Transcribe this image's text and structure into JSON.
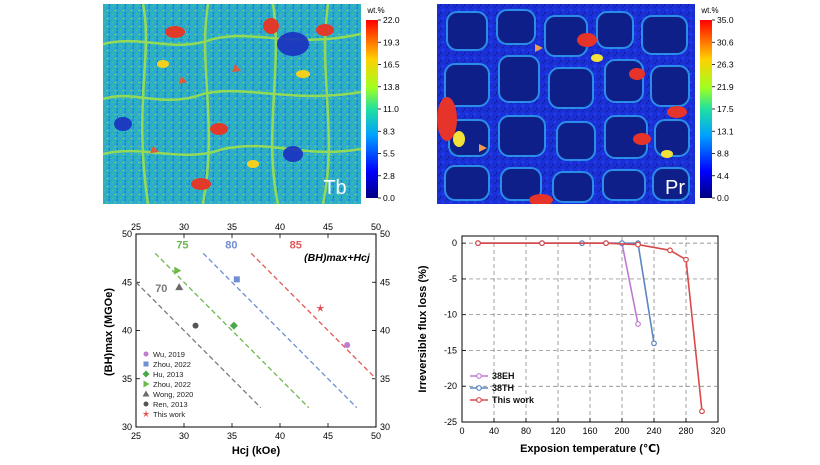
{
  "maps": [
    {
      "element": "Tb",
      "unit": "wt.%",
      "scale_ticks": [
        "22.0",
        "19.3",
        "16.5",
        "13.8",
        "11.0",
        "8.3",
        "5.5",
        "2.8",
        "0.0"
      ]
    },
    {
      "element": "Pr",
      "unit": "wt.%",
      "scale_ticks": [
        "35.0",
        "30.6",
        "26.3",
        "21.9",
        "17.5",
        "13.1",
        "8.8",
        "4.4",
        "0.0"
      ]
    }
  ],
  "scatter": {
    "xlabel": "Hcj (kOe)",
    "ylabel": "(BH)max (MGOe)",
    "annotation": "(BH)max+Hcj",
    "xticks": [
      "25",
      "30",
      "35",
      "40",
      "45",
      "50"
    ],
    "yticks": [
      "30",
      "35",
      "40",
      "45",
      "50"
    ],
    "lines": [
      {
        "label": "70",
        "color": "#7a7a7a"
      },
      {
        "label": "75",
        "color": "#6db84d"
      },
      {
        "label": "80",
        "color": "#6f8fd0"
      },
      {
        "label": "85",
        "color": "#e05a5a"
      }
    ],
    "legend": [
      {
        "label": "Wu, 2019",
        "color": "#c07ad0",
        "marker": "circle"
      },
      {
        "label": "Zhou, 2022",
        "color": "#6f8fd0",
        "marker": "square"
      },
      {
        "label": "Hu, 2013",
        "color": "#4aa84a",
        "marker": "diamond"
      },
      {
        "label": "Zhou, 2022",
        "color": "#6db84d",
        "marker": "triangle-right"
      },
      {
        "label": "Wong, 2020",
        "color": "#6a6a6a",
        "marker": "triangle"
      },
      {
        "label": "Ren, 2013",
        "color": "#555555",
        "marker": "circle"
      },
      {
        "label": "This work",
        "color": "#e04848",
        "marker": "star"
      }
    ]
  },
  "chart_data": [
    {
      "type": "scatter",
      "xlabel": "Hcj (kOe)",
      "ylabel": "(BH)max (MGOe)",
      "xlim": [
        25,
        50
      ],
      "ylim": [
        30,
        50
      ],
      "series": [
        {
          "name": "Wu, 2019",
          "x": [
            47
          ],
          "y": [
            38.5
          ]
        },
        {
          "name": "Zhou, 2022",
          "x": [
            35.5
          ],
          "y": [
            45.3
          ]
        },
        {
          "name": "Hu, 2013",
          "x": [
            35.2
          ],
          "y": [
            40.5
          ]
        },
        {
          "name": "Zhou, 2022",
          "x": [
            29.3
          ],
          "y": [
            46.2
          ]
        },
        {
          "name": "Wong, 2020",
          "x": [
            29.5
          ],
          "y": [
            44.5
          ]
        },
        {
          "name": "Ren, 2013",
          "x": [
            31.2
          ],
          "y": [
            40.5
          ]
        },
        {
          "name": "This work",
          "x": [
            44.2
          ],
          "y": [
            42.3
          ]
        }
      ],
      "iso_lines": [
        {
          "label": "70",
          "sum": 70
        },
        {
          "label": "75",
          "sum": 75
        },
        {
          "label": "80",
          "sum": 80
        },
        {
          "label": "85",
          "sum": 85
        }
      ]
    },
    {
      "type": "line",
      "xlabel": "Exposion temperature (℃)",
      "ylabel": "Irreversible flux loss (%)",
      "xlim": [
        0,
        320
      ],
      "ylim": [
        -25,
        1
      ],
      "xticks": [
        "0",
        "40",
        "80",
        "120",
        "160",
        "200",
        "240",
        "280",
        "320"
      ],
      "yticks": [
        "0",
        "-5",
        "-10",
        "-15",
        "-20",
        "-25"
      ],
      "legend_position": "bottom-left",
      "series": [
        {
          "name": "38EH",
          "color": "#c07ad0",
          "x": [
            20,
            100,
            150,
            180,
            200,
            220
          ],
          "y": [
            0,
            0,
            0,
            0,
            0,
            -11.3
          ]
        },
        {
          "name": "38TH",
          "color": "#5a86c0",
          "x": [
            20,
            100,
            150,
            180,
            200,
            220,
            240
          ],
          "y": [
            0,
            0,
            0,
            0,
            0,
            0,
            -14
          ]
        },
        {
          "name": "This work",
          "color": "#d94a4a",
          "x": [
            20,
            100,
            180,
            220,
            260,
            280,
            300
          ],
          "y": [
            0,
            0,
            0,
            -0.2,
            -1,
            -2.3,
            -23.5
          ]
        }
      ]
    }
  ]
}
